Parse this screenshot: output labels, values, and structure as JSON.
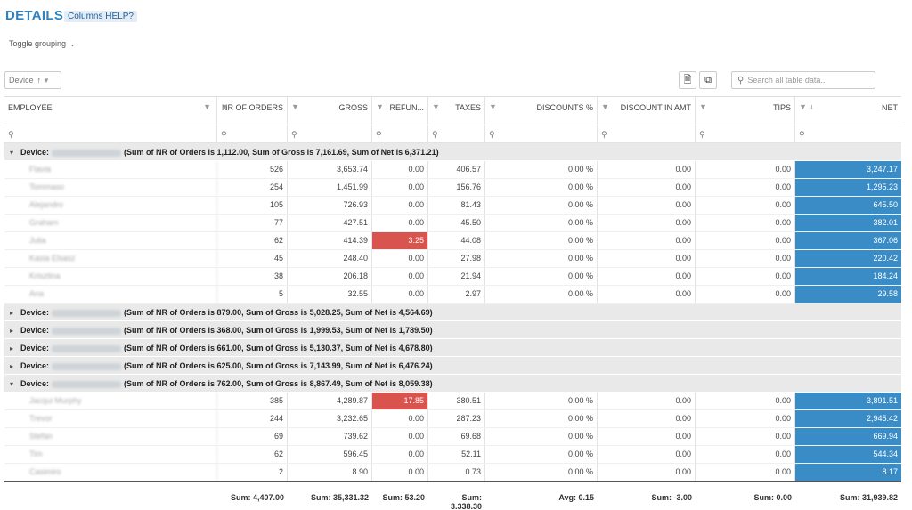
{
  "header": {
    "title": "DETAILS",
    "help_label": "Columns HELP?",
    "toggle_label": "Toggle grouping"
  },
  "toolbar": {
    "group_chip": "Device",
    "search_placeholder": "Search all table data..."
  },
  "icons": {
    "sort": "sort-ascending-icon",
    "filter": "filter-icon",
    "export": "export-icon",
    "columns": "columns-icon",
    "search": "search-icon"
  },
  "colors": {
    "accent": "#2e83bf",
    "net_highlight": "#3a8cc7",
    "refund_highlight": "#d9534f"
  },
  "columns": [
    "EMPLOYEE",
    "NR OF ORDERS",
    "GROSS",
    "REFUN...",
    "TAXES",
    "DISCOUNTS %",
    "DISCOUNT IN AMT",
    "TIPS",
    "NET"
  ],
  "groups": [
    {
      "label": "Device:",
      "id": "C010E0A4740155",
      "summary": "(Sum of NR of Orders is 1,112.00, Sum of Gross is 7,161.69, Sum of Net is 6,371.21)",
      "expanded": true,
      "rows": [
        {
          "employee": "Flavia",
          "orders": "526",
          "gross": "3,653.74",
          "refund": "0.00",
          "taxes": "406.57",
          "disc_pct": "0.00 %",
          "disc_amt": "0.00",
          "tips": "0.00",
          "net": "3,247.17"
        },
        {
          "employee": "Tommaso",
          "orders": "254",
          "gross": "1,451.99",
          "refund": "0.00",
          "taxes": "156.76",
          "disc_pct": "0.00 %",
          "disc_amt": "0.00",
          "tips": "0.00",
          "net": "1,295.23"
        },
        {
          "employee": "Alejandro",
          "orders": "105",
          "gross": "726.93",
          "refund": "0.00",
          "taxes": "81.43",
          "disc_pct": "0.00 %",
          "disc_amt": "0.00",
          "tips": "0.00",
          "net": "645.50"
        },
        {
          "employee": "Graham",
          "orders": "77",
          "gross": "427.51",
          "refund": "0.00",
          "taxes": "45.50",
          "disc_pct": "0.00 %",
          "disc_amt": "0.00",
          "tips": "0.00",
          "net": "382.01"
        },
        {
          "employee": "Julia",
          "orders": "62",
          "gross": "414.39",
          "refund": "3.25",
          "taxes": "44.08",
          "disc_pct": "0.00 %",
          "disc_amt": "0.00",
          "tips": "0.00",
          "net": "367.06"
        },
        {
          "employee": "Kasia Elsasz",
          "orders": "45",
          "gross": "248.40",
          "refund": "0.00",
          "taxes": "27.98",
          "disc_pct": "0.00 %",
          "disc_amt": "0.00",
          "tips": "0.00",
          "net": "220.42"
        },
        {
          "employee": "Krisztina",
          "orders": "38",
          "gross": "206.18",
          "refund": "0.00",
          "taxes": "21.94",
          "disc_pct": "0.00 %",
          "disc_amt": "0.00",
          "tips": "0.00",
          "net": "184.24"
        },
        {
          "employee": "Ana",
          "orders": "5",
          "gross": "32.55",
          "refund": "0.00",
          "taxes": "2.97",
          "disc_pct": "0.00 %",
          "disc_amt": "0.00",
          "tips": "0.00",
          "net": "29.58"
        }
      ]
    },
    {
      "label": "Device:",
      "id": "C010E051220125",
      "summary": "(Sum of NR of Orders is 879.00, Sum of Gross is 5,028.25, Sum of Net is 4,564.69)",
      "expanded": false,
      "rows": []
    },
    {
      "label": "Device:",
      "id": "C010E051230129",
      "summary": "(Sum of NR of Orders is 368.00, Sum of Gross is 1,999.53, Sum of Net is 1,789.50)",
      "expanded": false,
      "rows": []
    },
    {
      "label": "Device:",
      "id": "C010E052970050",
      "summary": "(Sum of NR of Orders is 661.00, Sum of Gross is 5,130.37, Sum of Net is 4,678.80)",
      "expanded": false,
      "rows": []
    },
    {
      "label": "Device:",
      "id": "C010E053360019",
      "summary": "(Sum of NR of Orders is 625.00, Sum of Gross is 7,143.99, Sum of Net is 6,476.24)",
      "expanded": false,
      "rows": []
    },
    {
      "label": "Device:",
      "id": "C010E054420378",
      "summary": "(Sum of NR of Orders is 762.00, Sum of Gross is 8,867.49, Sum of Net is 8,059.38)",
      "expanded": true,
      "rows": [
        {
          "employee": "Jacqui Murphy",
          "orders": "385",
          "gross": "4,289.87",
          "refund": "17.85",
          "taxes": "380.51",
          "disc_pct": "0.00 %",
          "disc_amt": "0.00",
          "tips": "0.00",
          "net": "3,891.51"
        },
        {
          "employee": "Trevor",
          "orders": "244",
          "gross": "3,232.65",
          "refund": "0.00",
          "taxes": "287.23",
          "disc_pct": "0.00 %",
          "disc_amt": "0.00",
          "tips": "0.00",
          "net": "2,945.42"
        },
        {
          "employee": "Stefan",
          "orders": "69",
          "gross": "739.62",
          "refund": "0.00",
          "taxes": "69.68",
          "disc_pct": "0.00 %",
          "disc_amt": "0.00",
          "tips": "0.00",
          "net": "669.94"
        },
        {
          "employee": "Tim",
          "orders": "62",
          "gross": "596.45",
          "refund": "0.00",
          "taxes": "52.11",
          "disc_pct": "0.00 %",
          "disc_amt": "0.00",
          "tips": "0.00",
          "net": "544.34"
        },
        {
          "employee": "Casimiro",
          "orders": "2",
          "gross": "8.90",
          "refund": "0.00",
          "taxes": "0.73",
          "disc_pct": "0.00 %",
          "disc_amt": "0.00",
          "tips": "0.00",
          "net": "8.17"
        }
      ]
    }
  ],
  "footer": {
    "employee": "",
    "orders": "Sum: 4,407.00",
    "gross": "Sum: 35,331.32",
    "refund": "Sum: 53.20",
    "taxes": "Sum: 3,338.30",
    "disc_pct": "Avg: 0.15",
    "disc_amt": "Sum: -3.00",
    "tips": "Sum: 0.00",
    "net": "Sum: 31,939.82"
  }
}
